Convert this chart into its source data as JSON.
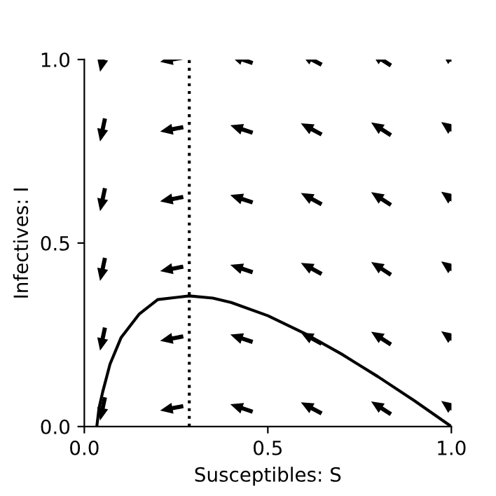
{
  "chart_data": {
    "type": "line",
    "xlabel": "Susceptibles: S",
    "ylabel": "Infectives: I",
    "x": [
      0.034,
      0.04,
      0.05,
      0.07,
      0.1,
      0.15,
      0.2,
      0.286,
      0.35,
      0.4,
      0.5,
      0.6,
      0.7,
      0.8,
      0.9,
      1.0
    ],
    "series": [
      {
        "color": "#000000",
        "values": [
          0.0,
          0.05,
          0.094,
          0.17,
          0.242,
          0.307,
          0.346,
          0.356,
          0.35,
          0.338,
          0.302,
          0.254,
          0.198,
          0.136,
          0.07,
          0.0
        ]
      }
    ],
    "ref_lines": [
      {
        "axis": "x",
        "value": 0.286,
        "label": null,
        "color": "#000000",
        "line_style": "dotted"
      }
    ],
    "xlim": [
      0,
      1
    ],
    "ylim": [
      0,
      1
    ],
    "xticks": [
      {
        "value": 0,
        "label": "0.0"
      },
      0.5,
      {
        "value": 1,
        "label": "1.0"
      }
    ],
    "yticks": [
      {
        "value": 0,
        "label": "0.0"
      },
      0.5,
      {
        "value": 1,
        "label": "1.0"
      }
    ],
    "grid": false,
    "legend": false,
    "marker": "none",
    "line_style": "solid"
  }
}
